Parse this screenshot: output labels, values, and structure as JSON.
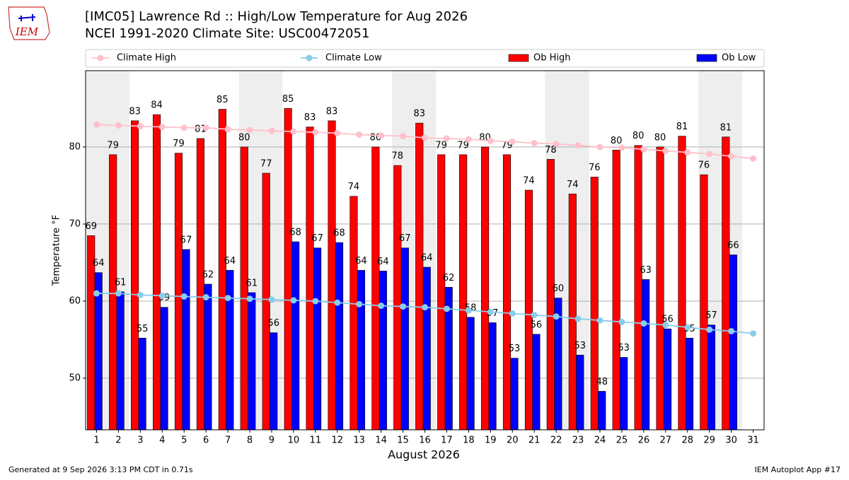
{
  "chart_data": {
    "type": "bar",
    "logo_text": "IEM",
    "title": "[IMC05] Lawrence Rd  :: High/Low Temperature for Aug 2026",
    "subtitle": "NCEI 1991-2020 Climate Site: USC00472051",
    "xlabel": "August 2026",
    "ylabel": "Temperature °F",
    "footer_left": "Generated at 9 Sep 2026 3:13 PM CDT in 0.71s",
    "footer_right": "IEM Autoplot App #17",
    "categories": [
      "1",
      "2",
      "3",
      "4",
      "5",
      "6",
      "7",
      "8",
      "9",
      "10",
      "11",
      "12",
      "13",
      "14",
      "15",
      "16",
      "17",
      "18",
      "19",
      "20",
      "21",
      "22",
      "23",
      "24",
      "25",
      "26",
      "27",
      "28",
      "29",
      "30",
      "31"
    ],
    "ylim": [
      43.3,
      89.9
    ],
    "yticks": [
      50,
      60,
      70,
      80
    ],
    "grid": true,
    "series": [
      {
        "name": "Climate High",
        "type": "line",
        "color": "#ffc0cb",
        "values": [
          82.9,
          82.8,
          82.7,
          82.6,
          82.5,
          82.5,
          82.3,
          82.2,
          82.1,
          82.0,
          81.9,
          81.8,
          81.6,
          81.5,
          81.4,
          81.2,
          81.1,
          81.0,
          80.8,
          80.7,
          80.5,
          80.4,
          80.2,
          80.0,
          79.9,
          79.7,
          79.5,
          79.3,
          79.1,
          78.8,
          78.5
        ]
      },
      {
        "name": "Climate Low",
        "type": "line",
        "color": "#87ceeb",
        "values": [
          61.0,
          61.0,
          60.8,
          60.7,
          60.6,
          60.5,
          60.4,
          60.3,
          60.2,
          60.1,
          60.0,
          59.8,
          59.6,
          59.4,
          59.3,
          59.2,
          59.0,
          58.8,
          58.6,
          58.4,
          58.2,
          58.0,
          57.7,
          57.5,
          57.3,
          57.1,
          56.9,
          56.6,
          56.3,
          56.1,
          55.8
        ]
      },
      {
        "name": "Ob High",
        "type": "bar",
        "color": "#ff0000",
        "values": [
          68.5,
          79.0,
          83.4,
          84.2,
          79.2,
          81.1,
          84.9,
          80.0,
          76.6,
          85.0,
          82.6,
          83.4,
          73.6,
          80.0,
          77.6,
          83.1,
          79.0,
          79.0,
          80.0,
          79.0,
          74.4,
          78.4,
          73.9,
          76.1,
          79.6,
          80.2,
          80.0,
          81.4,
          76.4,
          81.3,
          null
        ],
        "value_labels": [
          "69",
          "79",
          "83",
          "84",
          "79",
          "81",
          "85",
          "80",
          "77",
          "85",
          "83",
          "83",
          "74",
          "80",
          "78",
          "83",
          "79",
          "79",
          "80",
          "79",
          "74",
          "78",
          "74",
          "76",
          "80",
          "80",
          "80",
          "81",
          "76",
          "81",
          null
        ]
      },
      {
        "name": "Ob Low",
        "type": "bar",
        "color": "#0000ff",
        "values": [
          63.7,
          61.2,
          55.2,
          59.2,
          66.7,
          62.2,
          64.0,
          61.1,
          55.9,
          67.7,
          66.9,
          67.6,
          64.0,
          63.9,
          66.9,
          64.4,
          61.8,
          57.9,
          57.2,
          52.6,
          55.7,
          60.4,
          53.0,
          48.3,
          52.7,
          62.8,
          56.4,
          55.2,
          56.9,
          66.0,
          null
        ],
        "value_labels": [
          "64",
          "61",
          "55",
          "59",
          "67",
          "62",
          "64",
          "61",
          "56",
          "68",
          "67",
          "68",
          "64",
          "64",
          "67",
          "64",
          "62",
          "58",
          "57",
          "53",
          "56",
          "60",
          "53",
          "48",
          "53",
          "63",
          "56",
          "55",
          "57",
          "66",
          null
        ]
      }
    ]
  }
}
